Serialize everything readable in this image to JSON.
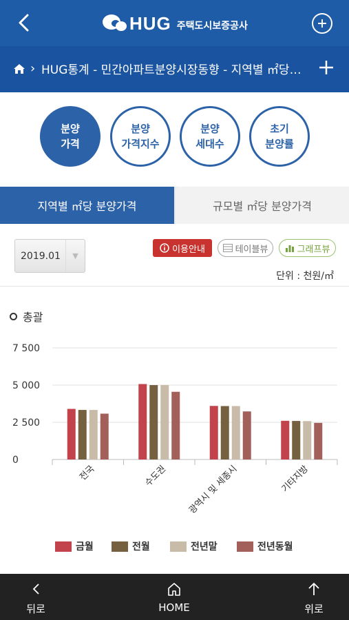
{
  "header": {
    "logo_text": "HUG",
    "logo_sub": "주택도시보증공사",
    "breadcrumb": "HUG통계 - 민간아파트분양시장동향 - 지역별 ㎡당 분양가격"
  },
  "menu_circles": [
    {
      "label": "분양\n가격"
    },
    {
      "label": "분양\n가격지수"
    },
    {
      "label": "분양\n세대수"
    },
    {
      "label": "초기\n분양률"
    }
  ],
  "tabs": [
    {
      "label": "지역별 ㎡당 분양가격"
    },
    {
      "label": "규모별 ㎡당 분양가격"
    }
  ],
  "controls": {
    "selected_month": "2019.01",
    "info_button": "이용안내",
    "table_button": "테이블뷰",
    "graph_button": "그래프뷰",
    "unit": "단위 : 천원/㎡"
  },
  "section_title": "총괄",
  "chart_data": {
    "type": "bar",
    "categories": [
      "전국",
      "수도권",
      "광역시 및 세종시",
      "기타지방"
    ],
    "series": [
      {
        "name": "금월",
        "values": [
          3400,
          5070,
          3600,
          2600
        ]
      },
      {
        "name": "전월",
        "values": [
          3330,
          5000,
          3590,
          2590
        ]
      },
      {
        "name": "전년말",
        "values": [
          3330,
          5000,
          3590,
          2580
        ]
      },
      {
        "name": "전년동월",
        "values": [
          3080,
          4550,
          3230,
          2460
        ]
      }
    ],
    "yticks": [
      "0",
      "2 500",
      "5 000",
      "7 500"
    ],
    "ylim": [
      0,
      7500
    ],
    "legend": "bottom",
    "colors": [
      "#c2434b",
      "#75603f",
      "#c8bba8",
      "#a3605b"
    ]
  },
  "bottom_nav": {
    "back": "뒤로",
    "home": "HOME",
    "up": "위로"
  }
}
